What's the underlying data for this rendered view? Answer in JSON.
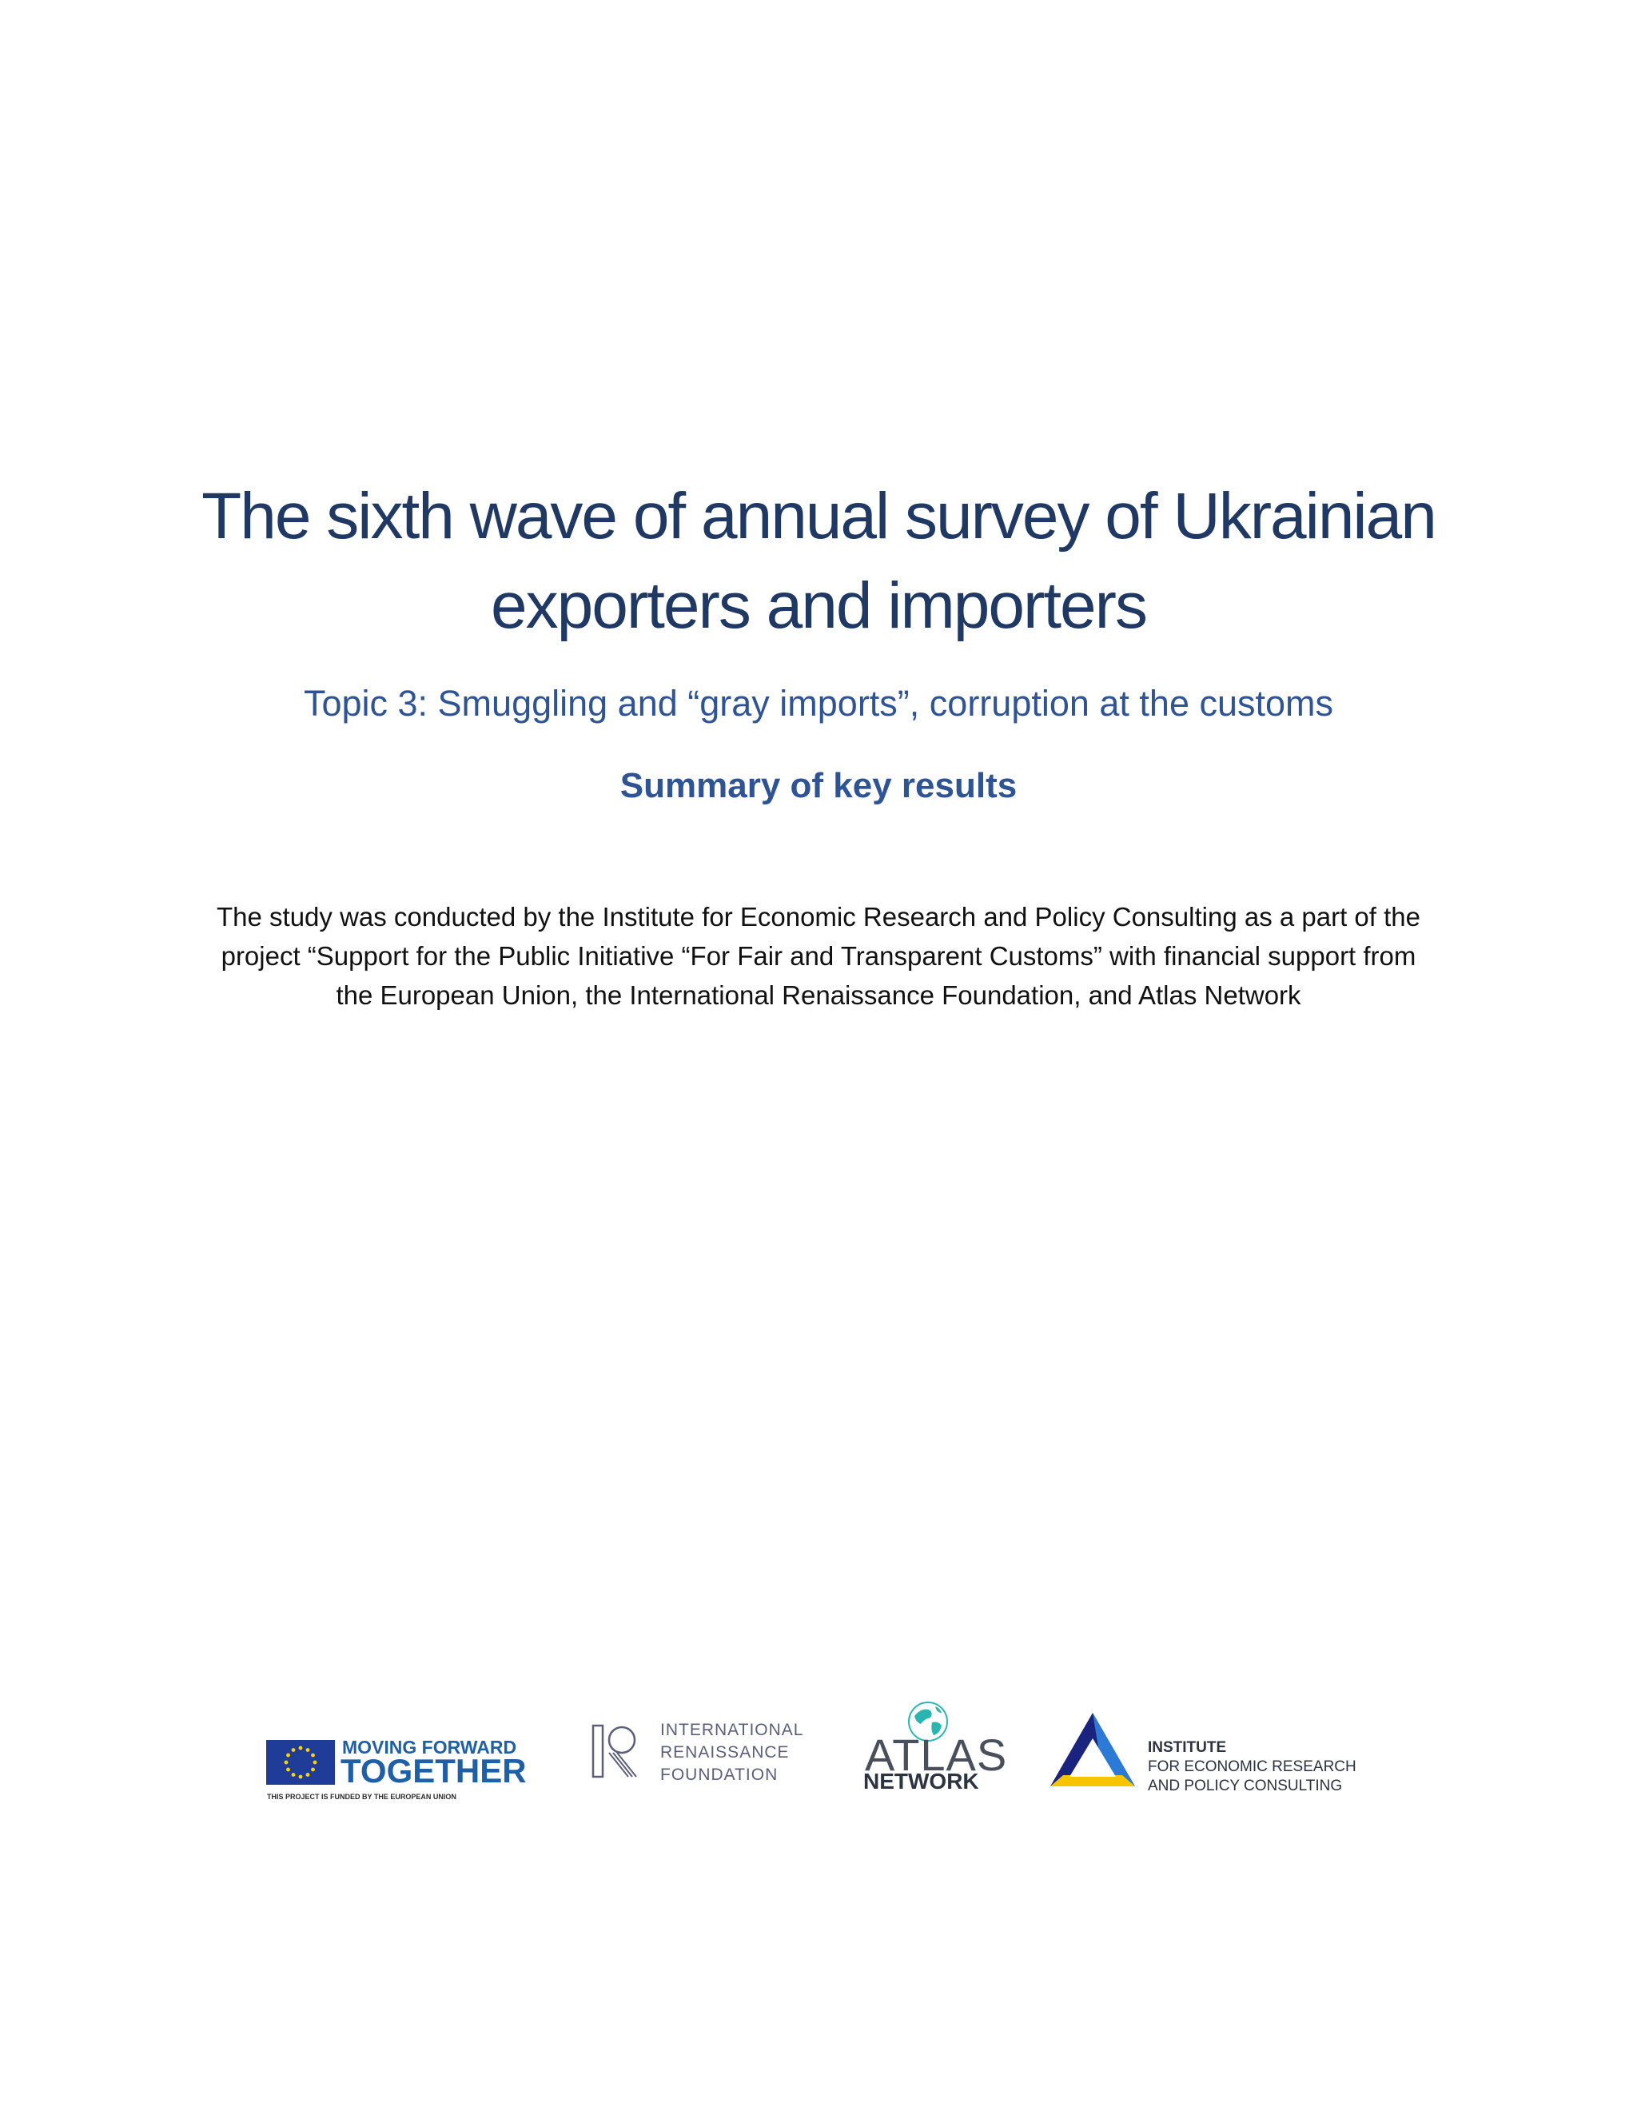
{
  "document": {
    "title_line1": "The sixth wave of annual survey of Ukrainian",
    "title_line2": "exporters and importers",
    "subtitle": "Topic 3: Smuggling and “gray imports”, corruption at the customs",
    "summary_heading": "Summary of key results",
    "description_line1": "The study was conducted by the Institute for Economic Research and Policy Consulting as a part of the",
    "description_line2": "project “Support for the Public Initiative “For Fair and Transparent Customs” with financial support from",
    "description_line3": "the European Union, the International Renaissance Foundation, and Atlas Network"
  },
  "logos": {
    "eu": {
      "line1": "MOVING FORWARD",
      "line2": "TOGETHER",
      "line3": "THIS PROJECT IS FUNDED BY THE EUROPEAN UNION",
      "icon": "eu-flag-icon",
      "flag_color": "#1f3c99",
      "text_color": "#1f5fa8"
    },
    "irf": {
      "line1": "INTERNATIONAL",
      "line2": "RENAISSANCE",
      "line3": "FOUNDATION",
      "icon": "irf-mark-icon"
    },
    "atlas": {
      "word": "ATLAS",
      "network": "NETWORK",
      "icon": "globe-icon",
      "globe_color": "#2bb5b0"
    },
    "ier": {
      "line1": "INSTITUTE",
      "line2": "FOR ECONOMIC RESEARCH",
      "line3": "AND POLICY CONSULTING",
      "icon": "triangle-icon",
      "colors": [
        "#1a237e",
        "#2b7bd6",
        "#f6c400",
        "#3a9ad9"
      ]
    }
  },
  "colors": {
    "title": "#1f3864",
    "subtitle": "#2f5496",
    "body_text": "#111111"
  }
}
